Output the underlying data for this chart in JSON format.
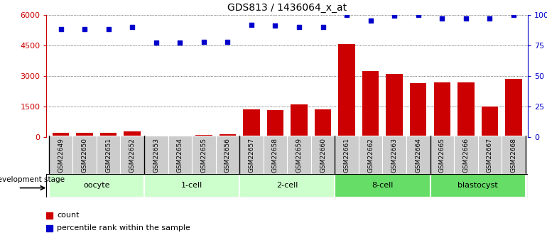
{
  "title": "GDS813 / 1436064_x_at",
  "samples": [
    "GSM22649",
    "GSM22650",
    "GSM22651",
    "GSM22652",
    "GSM22653",
    "GSM22654",
    "GSM22655",
    "GSM22656",
    "GSM22657",
    "GSM22658",
    "GSM22659",
    "GSM22660",
    "GSM22661",
    "GSM22662",
    "GSM22663",
    "GSM22664",
    "GSM22665",
    "GSM22666",
    "GSM22667",
    "GSM22668"
  ],
  "counts": [
    220,
    230,
    210,
    280,
    60,
    90,
    100,
    130,
    1380,
    1330,
    1600,
    1350,
    4550,
    3250,
    3100,
    2650,
    2700,
    2700,
    1500,
    2850
  ],
  "percentiles": [
    88,
    88,
    88,
    90,
    77,
    77,
    78,
    78,
    92,
    91,
    90,
    90,
    100,
    95,
    99,
    100,
    97,
    97,
    97,
    100
  ],
  "bar_color": "#cc0000",
  "dot_color": "#0000cc",
  "ylim_left": [
    0,
    6000
  ],
  "ylim_right": [
    0,
    100
  ],
  "yticks_left": [
    0,
    1500,
    3000,
    4500,
    6000
  ],
  "ytick_labels_left": [
    "0",
    "1500",
    "3000",
    "4500",
    "6000"
  ],
  "yticks_right": [
    0,
    25,
    50,
    75,
    100
  ],
  "ytick_labels_right": [
    "0",
    "25",
    "50",
    "75",
    "100%"
  ],
  "groups": [
    {
      "label": "oocyte",
      "start": 0,
      "end": 3,
      "color": "#ccffcc"
    },
    {
      "label": "1-cell",
      "start": 4,
      "end": 7,
      "color": "#ccffcc"
    },
    {
      "label": "2-cell",
      "start": 8,
      "end": 11,
      "color": "#ccffcc"
    },
    {
      "label": "8-cell",
      "start": 12,
      "end": 15,
      "color": "#66dd66"
    },
    {
      "label": "blastocyst",
      "start": 16,
      "end": 19,
      "color": "#66dd66"
    }
  ],
  "stage_label": "development stage",
  "legend_count_label": "count",
  "legend_pct_label": "percentile rank within the sample",
  "xtick_bg_color": "#cccccc",
  "xtick_border_color": "#ffffff",
  "stage_border_color": "#ffffff"
}
